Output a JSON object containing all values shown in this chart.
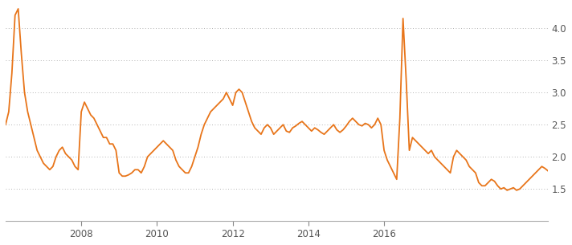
{
  "line_color": "#E8751A",
  "line_width": 1.3,
  "background_color": "#ffffff",
  "grid_color": "#999999",
  "grid_style": "dotted",
  "ylim": [
    1.0,
    4.35
  ],
  "yticks": [
    1.5,
    2.0,
    2.5,
    3.0,
    3.5,
    4.0
  ],
  "ytick_labels": [
    "1.5",
    "2.0",
    "2.5",
    "3.0",
    "3.5",
    "4.0"
  ],
  "xlabel_fontsize": 8.5,
  "ylabel_fontsize": 8.5,
  "xtick_labels": [
    "2008",
    "2010",
    "2012",
    "2014",
    "2016"
  ],
  "data": [
    2.5,
    2.7,
    3.3,
    4.2,
    4.3,
    3.6,
    3.0,
    2.7,
    2.5,
    2.3,
    2.1,
    2.0,
    1.9,
    1.85,
    1.8,
    1.85,
    2.0,
    2.1,
    2.15,
    2.05,
    2.0,
    1.95,
    1.85,
    1.8,
    2.7,
    2.85,
    2.75,
    2.65,
    2.6,
    2.5,
    2.4,
    2.3,
    2.3,
    2.2,
    2.2,
    2.1,
    1.75,
    1.7,
    1.7,
    1.72,
    1.75,
    1.8,
    1.8,
    1.75,
    1.85,
    2.0,
    2.05,
    2.1,
    2.15,
    2.2,
    2.25,
    2.2,
    2.15,
    2.1,
    1.95,
    1.85,
    1.8,
    1.75,
    1.75,
    1.85,
    2.0,
    2.15,
    2.35,
    2.5,
    2.6,
    2.7,
    2.75,
    2.8,
    2.85,
    2.9,
    3.0,
    2.9,
    2.8,
    3.0,
    3.05,
    3.0,
    2.85,
    2.7,
    2.55,
    2.45,
    2.4,
    2.35,
    2.45,
    2.5,
    2.45,
    2.35,
    2.4,
    2.45,
    2.5,
    2.4,
    2.38,
    2.45,
    2.48,
    2.52,
    2.55,
    2.5,
    2.45,
    2.4,
    2.45,
    2.42,
    2.38,
    2.35,
    2.4,
    2.45,
    2.5,
    2.42,
    2.38,
    2.42,
    2.48,
    2.55,
    2.6,
    2.55,
    2.5,
    2.48,
    2.52,
    2.5,
    2.45,
    2.5,
    2.6,
    2.5,
    2.1,
    1.95,
    1.85,
    1.75,
    1.65,
    2.6,
    4.15,
    3.2,
    2.1,
    2.3,
    2.25,
    2.2,
    2.15,
    2.1,
    2.05,
    2.1,
    2.0,
    1.95,
    1.9,
    1.85,
    1.8,
    1.75,
    2.0,
    2.1,
    2.05,
    2.0,
    1.95,
    1.85,
    1.8,
    1.75,
    1.6,
    1.55,
    1.55,
    1.6,
    1.65,
    1.62,
    1.55,
    1.5,
    1.52,
    1.48,
    1.5,
    1.52,
    1.48,
    1.5,
    1.55,
    1.6,
    1.65,
    1.7,
    1.75,
    1.8,
    1.85,
    1.82,
    1.78
  ]
}
